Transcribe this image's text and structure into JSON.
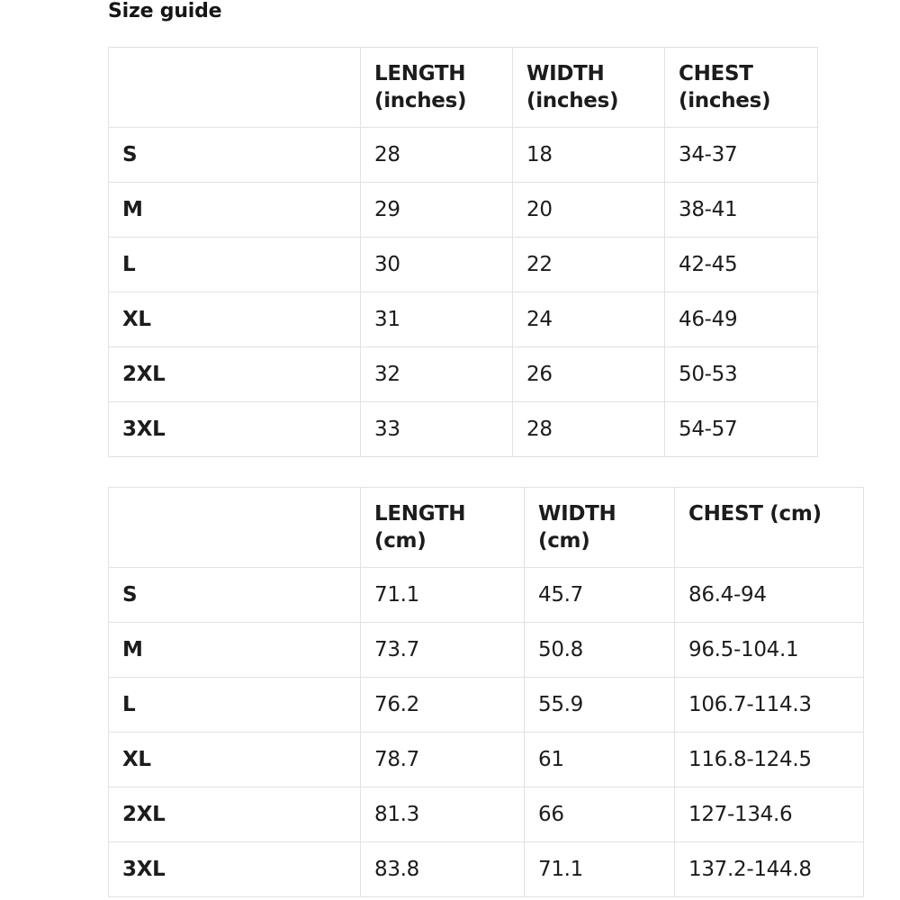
{
  "title": "Size guide",
  "colors": {
    "text": "#1c1c1c",
    "border": "#e2e2e2",
    "background": "#ffffff"
  },
  "inches_table": {
    "headers": {
      "size": "",
      "length": "LENGTH (inches)",
      "width": "WIDTH (inches)",
      "chest": "CHEST (inches)"
    },
    "rows": [
      {
        "label": "S",
        "length": "28",
        "width": "18",
        "chest": "34-37"
      },
      {
        "label": "M",
        "length": "29",
        "width": "20",
        "chest": "38-41"
      },
      {
        "label": "L",
        "length": "30",
        "width": "22",
        "chest": "42-45"
      },
      {
        "label": "XL",
        "length": "31",
        "width": "24",
        "chest": "46-49"
      },
      {
        "label": "2XL",
        "length": "32",
        "width": "26",
        "chest": "50-53"
      },
      {
        "label": "3XL",
        "length": "33",
        "width": "28",
        "chest": "54-57"
      }
    ]
  },
  "cm_table": {
    "headers": {
      "size": "",
      "length": "LENGTH (cm)",
      "width": "WIDTH (cm)",
      "chest": "CHEST (cm)"
    },
    "rows": [
      {
        "label": "S",
        "length": "71.1",
        "width": "45.7",
        "chest": "86.4-94"
      },
      {
        "label": "M",
        "length": "73.7",
        "width": "50.8",
        "chest": "96.5-104.1"
      },
      {
        "label": "L",
        "length": "76.2",
        "width": "55.9",
        "chest": "106.7-114.3"
      },
      {
        "label": "XL",
        "length": "78.7",
        "width": "61",
        "chest": "116.8-124.5"
      },
      {
        "label": "2XL",
        "length": "81.3",
        "width": "66",
        "chest": "127-134.6"
      },
      {
        "label": "3XL",
        "length": "83.8",
        "width": "71.1",
        "chest": "137.2-144.8"
      }
    ]
  }
}
